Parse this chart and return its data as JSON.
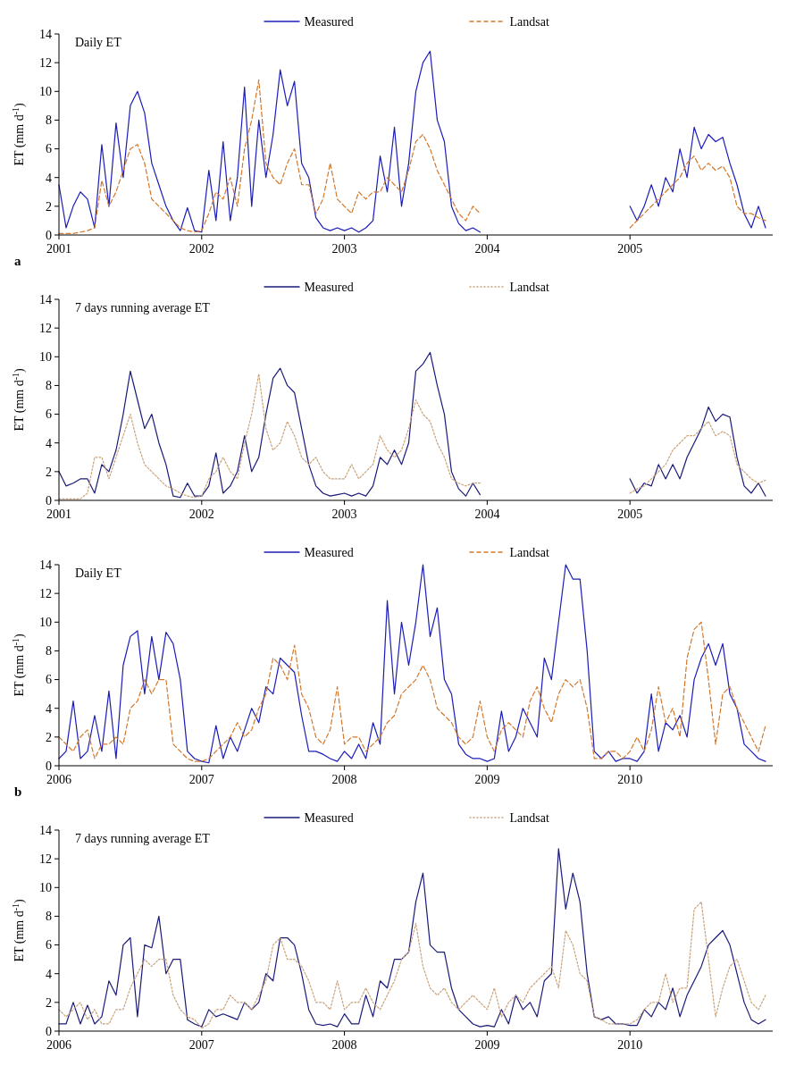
{
  "chart_data": [
    {
      "type": "line",
      "title": "Daily ET",
      "ylabel": "ET (mm d$^{-1}$)",
      "legend": "top",
      "annotations": [
        "a"
      ],
      "xlim": [
        2001,
        2006
      ],
      "xticks": [
        2001,
        2002,
        2003,
        2004,
        2005
      ],
      "ylim": [
        0,
        14
      ],
      "yticks": [
        0,
        2,
        4,
        6,
        8,
        10,
        12,
        14
      ],
      "x": [
        2001,
        2001.05,
        2001.1,
        2001.15,
        2001.2,
        2001.25,
        2001.3,
        2001.35,
        2001.4,
        2001.45,
        2001.5,
        2001.55,
        2001.6,
        2001.65,
        2001.7,
        2001.75,
        2001.8,
        2001.85,
        2001.9,
        2001.95,
        2002,
        2002.05,
        2002.1,
        2002.15,
        2002.2,
        2002.25,
        2002.3,
        2002.35,
        2002.4,
        2002.45,
        2002.5,
        2002.55,
        2002.6,
        2002.65,
        2002.7,
        2002.75,
        2002.8,
        2002.85,
        2002.9,
        2002.95,
        2003,
        2003.05,
        2003.1,
        2003.15,
        2003.2,
        2003.25,
        2003.3,
        2003.35,
        2003.4,
        2003.45,
        2003.5,
        2003.55,
        2003.6,
        2003.65,
        2003.7,
        2003.75,
        2003.8,
        2003.85,
        2003.9,
        2003.95,
        2004,
        2004.05,
        2004.1,
        2004.15,
        2004.2,
        2004.25,
        2004.3,
        2004.35,
        2004.4,
        2004.45,
        2004.5,
        2004.55,
        2004.6,
        2004.65,
        2004.7,
        2004.75,
        2004.8,
        2004.85,
        2004.9,
        2004.95,
        2005,
        2005.05,
        2005.1,
        2005.15,
        2005.2,
        2005.25,
        2005.3,
        2005.35,
        2005.4,
        2005.45,
        2005.5,
        2005.55,
        2005.6,
        2005.65,
        2005.7,
        2005.75,
        2005.8,
        2005.85,
        2005.9,
        2005.95
      ],
      "series": [
        {
          "name": "Measured",
          "color": "#1c1cb8",
          "line_style": "solid",
          "values": [
            3.5,
            0.5,
            2,
            3,
            2.5,
            0.5,
            6.3,
            2,
            7.8,
            4,
            9,
            10,
            8.5,
            5,
            3.5,
            2,
            1,
            0.3,
            1.9,
            0.3,
            0.2,
            4.5,
            1,
            6.5,
            1,
            4,
            10.3,
            2,
            8,
            4,
            7,
            11.5,
            9,
            10.7,
            5,
            4,
            1.2,
            0.5,
            0.3,
            0.5,
            0.3,
            0.5,
            0.2,
            0.5,
            1,
            5.5,
            3,
            7.5,
            2,
            5,
            10,
            12,
            12.8,
            8,
            6.5,
            2,
            0.8,
            0.3,
            0.5,
            0.2,
            null,
            null,
            null,
            null,
            null,
            null,
            null,
            null,
            null,
            null,
            null,
            null,
            null,
            null,
            null,
            null,
            null,
            null,
            null,
            null,
            2,
            1,
            2,
            3.5,
            2,
            4,
            3,
            6,
            4,
            7.5,
            6,
            7,
            6.5,
            6.8,
            5,
            3.5,
            1.5,
            0.5,
            2,
            0.5
          ]
        },
        {
          "name": "Landsat",
          "color": "#d2782c",
          "line_style": "dashed",
          "values": [
            0.1,
            0.1,
            0.1,
            0.2,
            0.3,
            0.5,
            3.8,
            2,
            3,
            4.5,
            6,
            6.3,
            5,
            2.5,
            2,
            1.5,
            1,
            0.5,
            0.3,
            0.2,
            0.3,
            1.5,
            3,
            2.5,
            4,
            2,
            6,
            8,
            10.8,
            5,
            4,
            3.5,
            5,
            6,
            3.5,
            3.5,
            1.5,
            2.5,
            5,
            2.5,
            2,
            1.5,
            3,
            2.5,
            3,
            3,
            4,
            3.5,
            3,
            4.5,
            6.5,
            7,
            6,
            4.5,
            3.5,
            2.5,
            1.5,
            1,
            2,
            1.5,
            null,
            null,
            null,
            null,
            null,
            null,
            null,
            null,
            null,
            null,
            null,
            null,
            null,
            null,
            null,
            null,
            null,
            null,
            null,
            null,
            0.5,
            1,
            1.5,
            2,
            2.5,
            3,
            3.5,
            4,
            5,
            5.5,
            4.5,
            5,
            4.5,
            4.8,
            4,
            2,
            1.5,
            1.5,
            1.2,
            1
          ]
        }
      ]
    },
    {
      "type": "line",
      "title": "7 days running average ET",
      "ylabel": "ET (mm d$^{-1}$)",
      "legend": "top",
      "xlim": [
        2001,
        2006
      ],
      "xticks": [
        2001,
        2002,
        2003,
        2004,
        2005
      ],
      "ylim": [
        0,
        14
      ],
      "yticks": [
        0,
        2,
        4,
        6,
        8,
        10,
        12,
        14
      ],
      "x": [
        2001,
        2001.05,
        2001.1,
        2001.15,
        2001.2,
        2001.25,
        2001.3,
        2001.35,
        2001.4,
        2001.45,
        2001.5,
        2001.55,
        2001.6,
        2001.65,
        2001.7,
        2001.75,
        2001.8,
        2001.85,
        2001.9,
        2001.95,
        2002,
        2002.05,
        2002.1,
        2002.15,
        2002.2,
        2002.25,
        2002.3,
        2002.35,
        2002.4,
        2002.45,
        2002.5,
        2002.55,
        2002.6,
        2002.65,
        2002.7,
        2002.75,
        2002.8,
        2002.85,
        2002.9,
        2002.95,
        2003,
        2003.05,
        2003.1,
        2003.15,
        2003.2,
        2003.25,
        2003.3,
        2003.35,
        2003.4,
        2003.45,
        2003.5,
        2003.55,
        2003.6,
        2003.65,
        2003.7,
        2003.75,
        2003.8,
        2003.85,
        2003.9,
        2003.95,
        2004,
        2004.05,
        2004.1,
        2004.15,
        2004.2,
        2004.25,
        2004.3,
        2004.35,
        2004.4,
        2004.45,
        2004.5,
        2004.55,
        2004.6,
        2004.65,
        2004.7,
        2004.75,
        2004.8,
        2004.85,
        2004.9,
        2004.95,
        2005,
        2005.05,
        2005.1,
        2005.15,
        2005.2,
        2005.25,
        2005.3,
        2005.35,
        2005.4,
        2005.45,
        2005.5,
        2005.55,
        2005.6,
        2005.65,
        2005.7,
        2005.75,
        2005.8,
        2005.85,
        2005.9,
        2005.95
      ],
      "series": [
        {
          "name": "Measured",
          "color": "#1a1a78",
          "line_style": "solid",
          "values": [
            2,
            1,
            1.2,
            1.5,
            1.5,
            0.5,
            2.5,
            2,
            3.5,
            6,
            9,
            7,
            5,
            6,
            4,
            2.5,
            0.3,
            0.2,
            1.2,
            0.3,
            0.3,
            1,
            3.3,
            0.5,
            1,
            2,
            4.5,
            2,
            3,
            6,
            8.5,
            9.2,
            8,
            7.5,
            5,
            2.5,
            1,
            0.5,
            0.3,
            0.4,
            0.5,
            0.3,
            0.5,
            0.3,
            1,
            3,
            2.5,
            3.5,
            2.5,
            4,
            9,
            9.5,
            10.3,
            8,
            6,
            2,
            0.8,
            0.3,
            1.2,
            0.4,
            null,
            null,
            null,
            null,
            null,
            null,
            null,
            null,
            null,
            null,
            null,
            null,
            null,
            null,
            null,
            null,
            null,
            null,
            null,
            null,
            1.5,
            0.5,
            1.2,
            1,
            2.5,
            1.5,
            2.5,
            1.5,
            3,
            4,
            5,
            6.5,
            5.5,
            6,
            5.8,
            3,
            1,
            0.5,
            1.2,
            0.3
          ]
        },
        {
          "name": "Landsat",
          "color": "#c9a27c",
          "line_style": "dotted",
          "values": [
            0.1,
            0.1,
            0.1,
            0.1,
            0.5,
            3,
            3,
            1.5,
            3,
            4.5,
            6,
            4,
            2.5,
            2,
            1.5,
            1,
            0.8,
            0.5,
            0.3,
            0.2,
            0.3,
            1.5,
            2,
            3,
            2,
            1.5,
            4,
            6,
            8.8,
            5,
            3.5,
            4,
            5.5,
            4.5,
            3,
            2.5,
            3,
            2,
            1.5,
            1.5,
            1.5,
            2.5,
            1.5,
            2,
            2.5,
            4.5,
            3.5,
            3,
            3.5,
            5,
            7,
            6,
            5.5,
            4,
            3,
            1.5,
            1.2,
            1,
            1.2,
            1.2,
            null,
            null,
            null,
            null,
            null,
            null,
            null,
            null,
            null,
            null,
            null,
            null,
            null,
            null,
            null,
            null,
            null,
            null,
            null,
            null,
            0.5,
            0.8,
            1,
            1.5,
            2,
            2.5,
            3.5,
            4,
            4.5,
            4.5,
            5,
            5.5,
            4.5,
            4.8,
            4.5,
            2.5,
            2,
            1.5,
            1.2,
            1.4
          ]
        }
      ]
    },
    {
      "type": "line",
      "title": "Daily ET",
      "ylabel": "ET (mm d$^{-1}$)",
      "legend": "top",
      "annotations": [
        "b"
      ],
      "xlim": [
        2006,
        2011
      ],
      "xticks": [
        2006,
        2007,
        2008,
        2009,
        2010
      ],
      "ylim": [
        0,
        14
      ],
      "yticks": [
        0,
        2,
        4,
        6,
        8,
        10,
        12,
        14
      ],
      "x": [
        2006,
        2006.05,
        2006.1,
        2006.15,
        2006.2,
        2006.25,
        2006.3,
        2006.35,
        2006.4,
        2006.45,
        2006.5,
        2006.55,
        2006.6,
        2006.65,
        2006.7,
        2006.75,
        2006.8,
        2006.85,
        2006.9,
        2006.95,
        2007,
        2007.05,
        2007.1,
        2007.15,
        2007.2,
        2007.25,
        2007.3,
        2007.35,
        2007.4,
        2007.45,
        2007.5,
        2007.55,
        2007.6,
        2007.65,
        2007.7,
        2007.75,
        2007.8,
        2007.85,
        2007.9,
        2007.95,
        2008,
        2008.05,
        2008.1,
        2008.15,
        2008.2,
        2008.25,
        2008.3,
        2008.35,
        2008.4,
        2008.45,
        2008.5,
        2008.55,
        2008.6,
        2008.65,
        2008.7,
        2008.75,
        2008.8,
        2008.85,
        2008.9,
        2008.95,
        2009,
        2009.05,
        2009.1,
        2009.15,
        2009.2,
        2009.25,
        2009.3,
        2009.35,
        2009.4,
        2009.45,
        2009.5,
        2009.55,
        2009.6,
        2009.65,
        2009.7,
        2009.75,
        2009.8,
        2009.85,
        2009.9,
        2009.95,
        2010,
        2010.05,
        2010.1,
        2010.15,
        2010.2,
        2010.25,
        2010.3,
        2010.35,
        2010.4,
        2010.45,
        2010.5,
        2010.55,
        2010.6,
        2010.65,
        2010.7,
        2010.75,
        2010.8,
        2010.85,
        2010.9,
        2010.95
      ],
      "series": [
        {
          "name": "Measured",
          "color": "#1c1cb8",
          "line_style": "solid",
          "values": [
            0.5,
            1,
            4.5,
            0.5,
            1,
            3.5,
            1,
            5.2,
            0.5,
            7,
            9,
            9.4,
            5,
            9,
            6,
            9.3,
            8.5,
            6,
            1,
            0.5,
            0.3,
            0.2,
            2.8,
            0.5,
            2,
            1,
            2.5,
            4,
            3,
            5.5,
            5,
            7.5,
            7,
            6.5,
            3.5,
            1,
            1,
            0.8,
            0.5,
            0.3,
            1,
            0.5,
            1.5,
            0.5,
            3,
            1.5,
            11.5,
            5,
            10,
            7,
            10,
            14,
            9,
            11,
            6,
            5,
            1.5,
            0.8,
            0.5,
            0.5,
            0.3,
            0.5,
            3.8,
            1,
            2,
            4,
            3,
            2,
            7.5,
            6,
            10,
            14,
            13,
            13,
            8,
            1,
            0.5,
            1,
            0.3,
            0.5,
            0.5,
            0.3,
            1,
            5,
            1,
            3,
            2.5,
            3.5,
            2,
            6,
            7.5,
            8.5,
            7,
            8.5,
            5,
            4,
            1.5,
            1,
            0.5,
            0.3
          ]
        },
        {
          "name": "Landsat",
          "color": "#d2782c",
          "line_style": "dashed",
          "values": [
            2,
            1.5,
            1,
            2,
            2.5,
            0.5,
            1.5,
            1.5,
            2,
            1.5,
            4,
            4.5,
            6,
            5,
            6,
            6,
            1.5,
            1,
            0.5,
            0.3,
            0.3,
            0.5,
            1,
            1.5,
            2,
            3,
            2,
            2.5,
            4,
            5,
            7.5,
            7,
            6,
            8.4,
            5,
            4,
            2,
            1.5,
            2.5,
            5.5,
            1.5,
            2,
            2,
            1,
            1.5,
            2,
            3,
            3.5,
            5,
            5.5,
            6,
            7,
            6,
            4,
            3.5,
            3,
            2,
            1.5,
            2,
            4.5,
            2,
            1,
            2.5,
            3,
            2.5,
            2,
            4.5,
            5.5,
            4,
            3,
            5,
            6,
            5.5,
            6,
            4,
            0.5,
            0.5,
            1,
            1,
            0.5,
            1,
            2,
            1,
            2.5,
            5.5,
            3,
            4,
            2,
            7.5,
            9.5,
            10,
            6,
            1.5,
            5,
            5.5,
            4,
            3,
            2,
            1,
            2.8
          ]
        }
      ]
    },
    {
      "type": "line",
      "title": "7 days running average ET",
      "ylabel": "ET (mm d$^{-1}$)",
      "legend": "top",
      "xlim": [
        2006,
        2011
      ],
      "xticks": [
        2006,
        2007,
        2008,
        2009,
        2010
      ],
      "ylim": [
        0,
        14
      ],
      "yticks": [
        0,
        2,
        4,
        6,
        8,
        10,
        12,
        14
      ],
      "x": [
        2006,
        2006.05,
        2006.1,
        2006.15,
        2006.2,
        2006.25,
        2006.3,
        2006.35,
        2006.4,
        2006.45,
        2006.5,
        2006.55,
        2006.6,
        2006.65,
        2006.7,
        2006.75,
        2006.8,
        2006.85,
        2006.9,
        2006.95,
        2007,
        2007.05,
        2007.1,
        2007.15,
        2007.2,
        2007.25,
        2007.3,
        2007.35,
        2007.4,
        2007.45,
        2007.5,
        2007.55,
        2007.6,
        2007.65,
        2007.7,
        2007.75,
        2007.8,
        2007.85,
        2007.9,
        2007.95,
        2008,
        2008.05,
        2008.1,
        2008.15,
        2008.2,
        2008.25,
        2008.3,
        2008.35,
        2008.4,
        2008.45,
        2008.5,
        2008.55,
        2008.6,
        2008.65,
        2008.7,
        2008.75,
        2008.8,
        2008.85,
        2008.9,
        2008.95,
        2009,
        2009.05,
        2009.1,
        2009.15,
        2009.2,
        2009.25,
        2009.3,
        2009.35,
        2009.4,
        2009.45,
        2009.5,
        2009.55,
        2009.6,
        2009.65,
        2009.7,
        2009.75,
        2009.8,
        2009.85,
        2009.9,
        2009.95,
        2010,
        2010.05,
        2010.1,
        2010.15,
        2010.2,
        2010.25,
        2010.3,
        2010.35,
        2010.4,
        2010.45,
        2010.5,
        2010.55,
        2010.6,
        2010.65,
        2010.7,
        2010.75,
        2010.8,
        2010.85,
        2010.9,
        2010.95
      ],
      "series": [
        {
          "name": "Measured",
          "color": "#1a1a78",
          "line_style": "solid",
          "values": [
            0.5,
            0.5,
            2,
            0.5,
            1.8,
            0.5,
            1,
            3.5,
            2.5,
            6,
            6.5,
            1,
            6,
            5.8,
            8,
            4,
            5,
            5,
            0.8,
            0.5,
            0.3,
            1.5,
            1,
            1.2,
            1,
            0.8,
            2,
            1.5,
            2,
            4,
            3.5,
            6.5,
            6.5,
            6,
            4,
            1.5,
            0.5,
            0.4,
            0.5,
            0.3,
            1.2,
            0.5,
            0.5,
            2.5,
            1,
            3.5,
            3,
            5,
            5,
            5.5,
            9,
            11,
            6,
            5.5,
            5.5,
            3,
            1.5,
            1,
            0.5,
            0.3,
            0.4,
            0.3,
            1.5,
            0.5,
            2.5,
            1.5,
            2,
            1,
            3.5,
            4,
            12.7,
            8.5,
            11,
            9,
            4,
            1,
            0.8,
            1,
            0.5,
            0.5,
            0.4,
            0.4,
            1.5,
            1,
            2,
            1.5,
            3,
            1,
            2.5,
            3.5,
            4.5,
            6,
            6.5,
            7,
            6,
            4,
            2,
            0.8,
            0.5,
            0.8
          ]
        },
        {
          "name": "Landsat",
          "color": "#c9a27c",
          "line_style": "dotted",
          "values": [
            1.5,
            1,
            1.5,
            2,
            0.8,
            1.5,
            0.5,
            0.5,
            1.5,
            1.5,
            3,
            4,
            5,
            4.5,
            5,
            5,
            2.5,
            1.5,
            1,
            0.8,
            0.2,
            0.5,
            1.5,
            1.5,
            2.5,
            2,
            2,
            1.5,
            2.5,
            3.5,
            6,
            6.5,
            5,
            5,
            4.5,
            3.5,
            2,
            2,
            1.5,
            3.5,
            1.5,
            2,
            2,
            3,
            2,
            1.5,
            2.5,
            3.5,
            5,
            5.5,
            7.5,
            4.5,
            3,
            2.5,
            3,
            2,
            1.5,
            2,
            2.5,
            2,
            1.5,
            3,
            1,
            2,
            2.5,
            2,
            3,
            3.5,
            4,
            4.5,
            3,
            7,
            6,
            4,
            3.5,
            1,
            0.8,
            0.5,
            0.5,
            0.5,
            0.5,
            0.8,
            1.5,
            2,
            2,
            4,
            2,
            3,
            3,
            8.5,
            9,
            5,
            1,
            3,
            4.5,
            5,
            3.5,
            2,
            1.5,
            2.5
          ]
        }
      ]
    }
  ]
}
